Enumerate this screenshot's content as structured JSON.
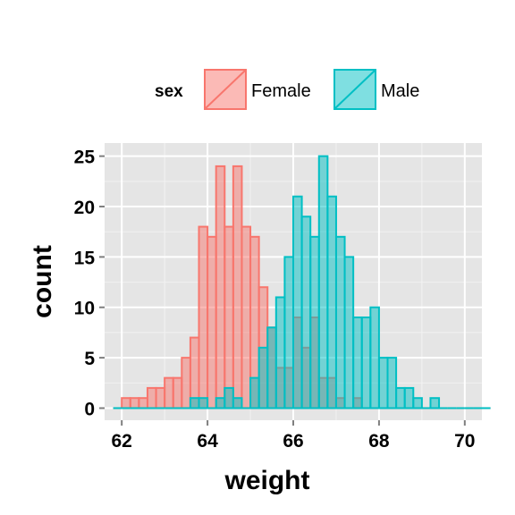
{
  "chart_data": {
    "type": "histogram",
    "xlabel": "weight",
    "ylabel": "count",
    "xlim": [
      61.6,
      70.4
    ],
    "ylim": [
      -1.2,
      26.3
    ],
    "x_ticks": [
      62,
      64,
      66,
      68,
      70
    ],
    "x_tick_labels": [
      "62",
      "64",
      "66",
      "68",
      "70"
    ],
    "y_ticks": [
      0,
      5,
      10,
      15,
      20,
      25
    ],
    "y_tick_labels": [
      "0",
      "5",
      "10",
      "15",
      "20",
      "25"
    ],
    "grid": true,
    "legend_placement": "top",
    "bin_width": 0.2,
    "x_start": 61.8,
    "legend": {
      "title": "sex",
      "entries": [
        "Female",
        "Male"
      ]
    },
    "series": [
      {
        "name": "Female",
        "fill": "#F8766D",
        "outline": "#F8766D",
        "values": [
          0,
          1,
          1,
          1,
          2,
          2,
          3,
          3,
          5,
          7,
          18,
          17,
          24,
          18,
          24,
          18,
          17,
          12,
          8,
          4,
          4,
          9,
          6,
          9,
          3,
          3,
          1,
          0,
          1,
          0,
          0,
          0,
          0,
          0,
          0,
          0,
          0,
          0,
          0,
          0,
          0,
          0,
          0,
          0
        ]
      },
      {
        "name": "Male",
        "fill": "#00BFC4",
        "outline": "#00BFC4",
        "values": [
          0,
          0,
          0,
          0,
          0,
          0,
          0,
          0,
          0,
          1,
          1,
          0,
          1,
          2,
          1,
          0,
          3,
          6,
          8,
          11,
          15,
          21,
          19,
          17,
          25,
          21,
          17,
          15,
          9,
          9,
          10,
          5,
          5,
          2,
          2,
          1,
          0,
          1,
          0,
          0,
          0,
          0,
          0,
          0
        ]
      }
    ]
  }
}
